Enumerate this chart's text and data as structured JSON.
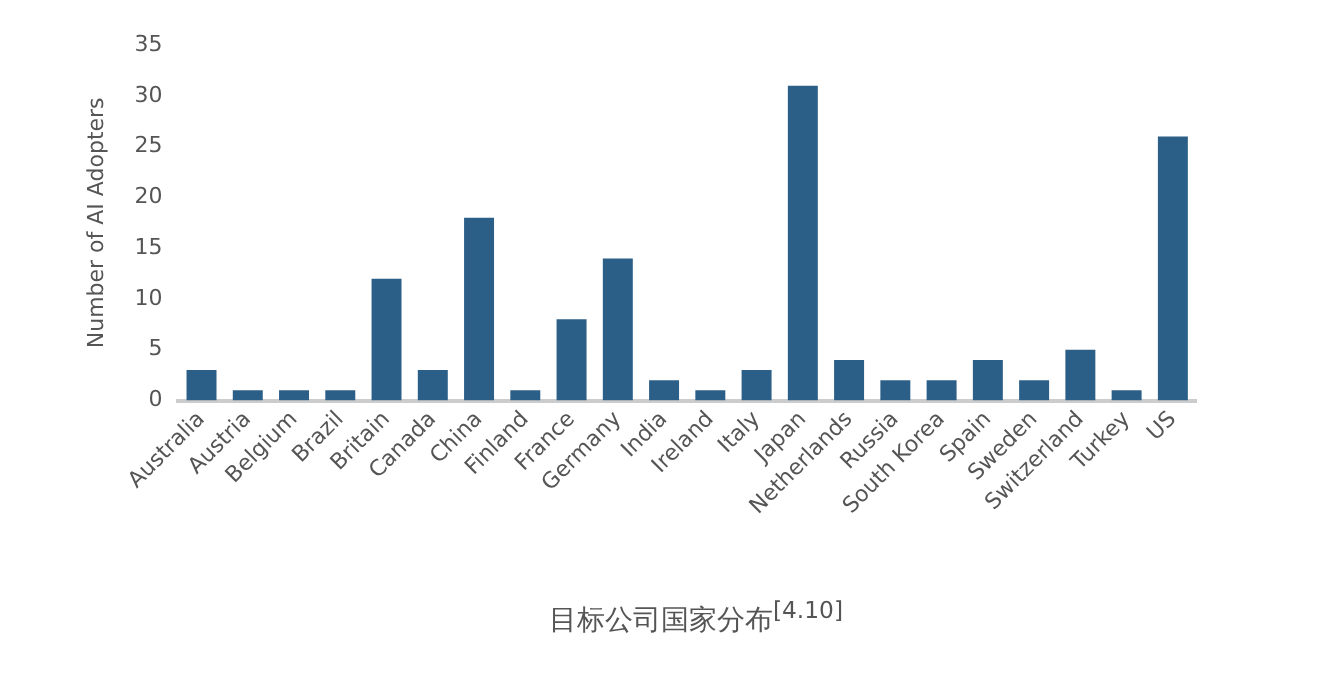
{
  "chart_data": {
    "type": "bar",
    "ylabel": "Number of AI Adopters",
    "categories": [
      "Australia",
      "Austria",
      "Belgium",
      "Brazil",
      "Britain",
      "Canada",
      "China",
      "Finland",
      "France",
      "Germany",
      "India",
      "Ireland",
      "Italy",
      "Japan",
      "Netherlands",
      "Russia",
      "South Korea",
      "Spain",
      "Sweden",
      "Switzerland",
      "Turkey",
      "US"
    ],
    "values": [
      3,
      1,
      1,
      1,
      12,
      3,
      18,
      1,
      8,
      14,
      2,
      1,
      3,
      31,
      4,
      2,
      2,
      4,
      2,
      5,
      1,
      26
    ],
    "color": "#2c5f87",
    "ylim": [
      0,
      35
    ],
    "yticks": [
      0,
      5,
      10,
      15,
      20,
      25,
      30,
      35
    ],
    "grid": false,
    "legend": false,
    "annotations": [
      "目标公司国家分布$^{[4.10]}$"
    ]
  }
}
